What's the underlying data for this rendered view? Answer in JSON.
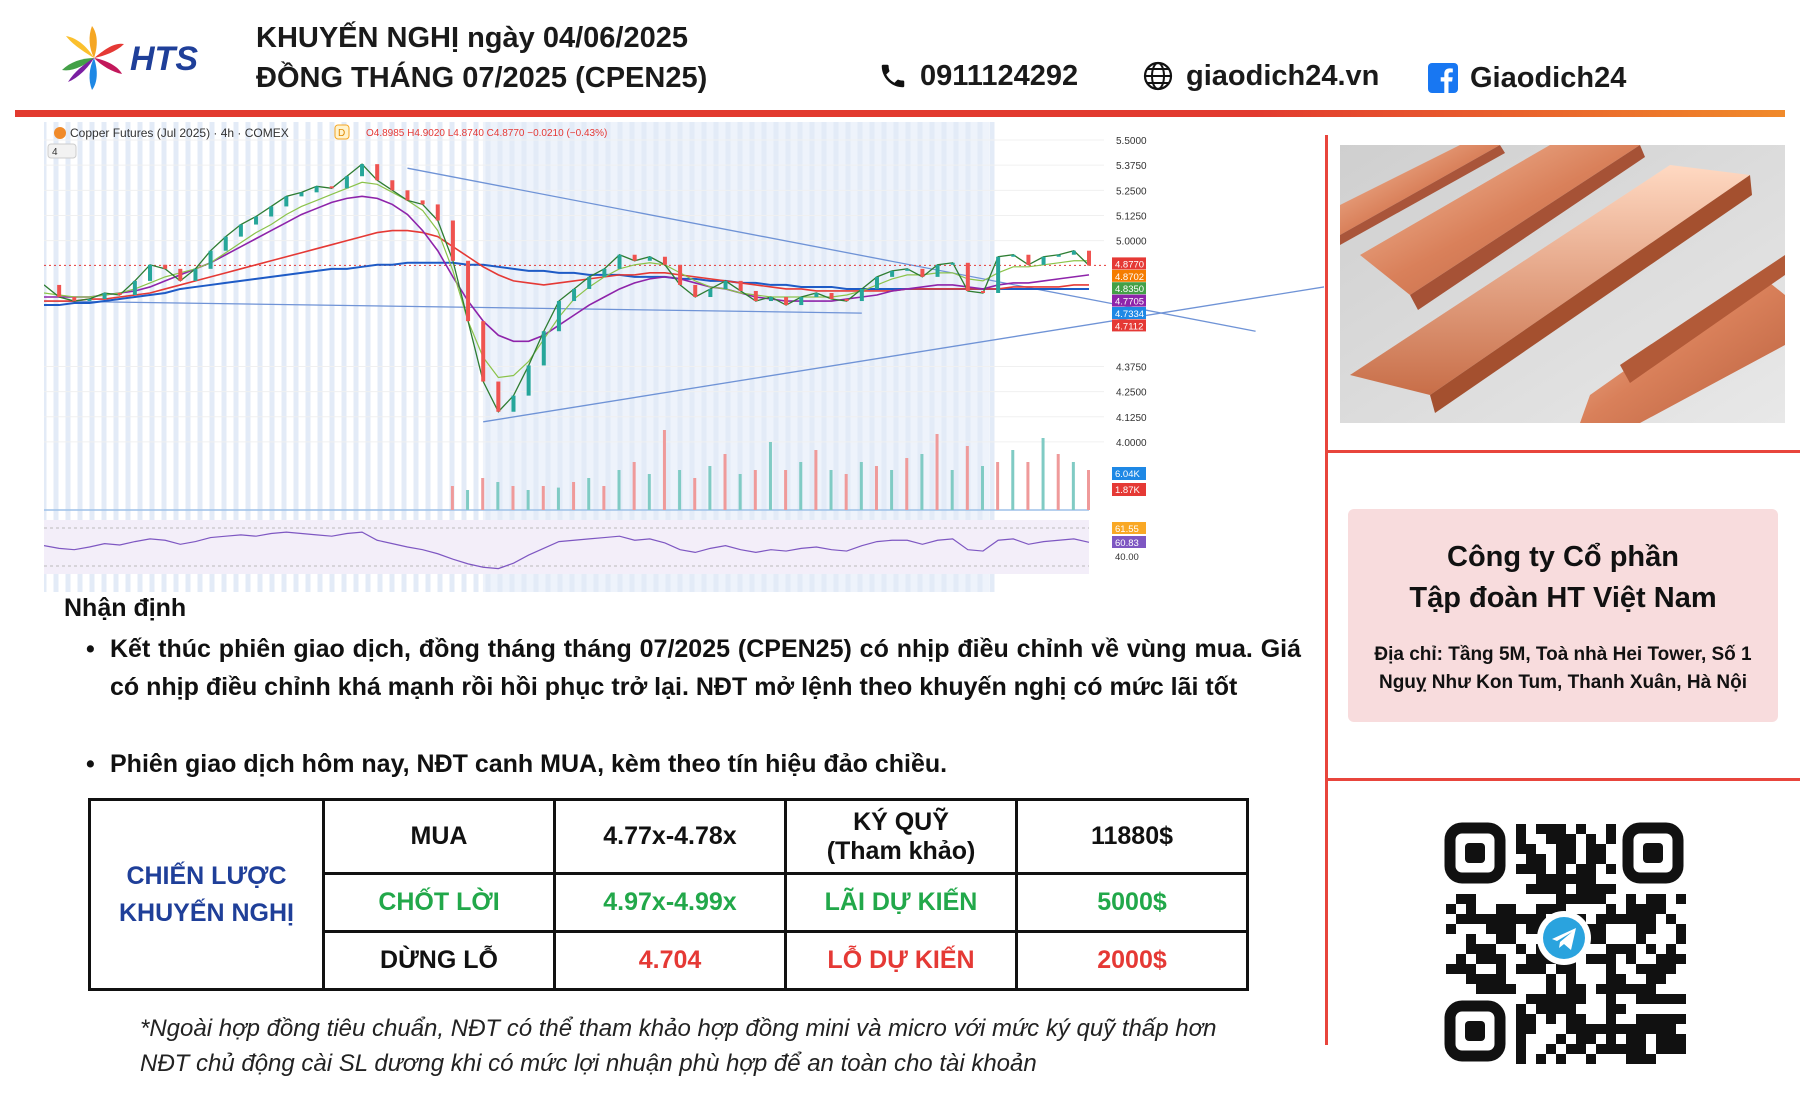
{
  "header": {
    "brand": "HTS",
    "title_line1": "KHUYẾN NGHỊ ngày 04/06/2025",
    "title_line2": "ĐỒNG THÁNG 07/2025 (CPEN25)",
    "phone": "0911124292",
    "website": "giaodich24.vn",
    "facebook": "Giaodich24"
  },
  "chart_toolbar": {
    "symbol": "Copper Futures (Jul 2025) · 4h · COMEX",
    "badge": "D",
    "ohlc": "O4.8985  H4.9020  L4.8740  C4.8770  −0.0210 (−0.43%)",
    "indicator_count": "4"
  },
  "chart_data": {
    "type": "line",
    "title": "Copper Futures (Jul 2025) · 4h · COMEX",
    "ylim": [
      3.95,
      5.5
    ],
    "y_ticks": [
      "5.5000",
      "5.3750",
      "5.2500",
      "5.1250",
      "5.0000",
      "4.3750",
      "4.2500",
      "4.1250",
      "4.0000"
    ],
    "series": [
      {
        "name": "price",
        "values": [
          4.78,
          4.72,
          4.7,
          4.71,
          4.74,
          4.73,
          4.8,
          4.88,
          4.86,
          4.8,
          4.86,
          4.95,
          5.02,
          5.08,
          5.12,
          5.17,
          5.22,
          5.24,
          5.27,
          5.26,
          5.32,
          5.38,
          5.3,
          5.25,
          5.2,
          5.18,
          5.1,
          4.9,
          4.6,
          4.3,
          4.15,
          4.23,
          4.38,
          4.55,
          4.7,
          4.76,
          4.82,
          4.86,
          4.93,
          4.9,
          4.92,
          4.88,
          4.78,
          4.72,
          4.76,
          4.8,
          4.75,
          4.7,
          4.72,
          4.68,
          4.72,
          4.74,
          4.71,
          4.7,
          4.76,
          4.82,
          4.85,
          4.86,
          4.82,
          4.88,
          4.89,
          4.75,
          4.74,
          4.92,
          4.93,
          4.88,
          4.92,
          4.93,
          4.95,
          4.877
        ]
      },
      {
        "name": "ma_fast",
        "values": [
          4.74,
          4.73,
          4.72,
          4.72,
          4.73,
          4.74,
          4.76,
          4.79,
          4.82,
          4.84,
          4.86,
          4.89,
          4.94,
          4.99,
          5.04,
          5.08,
          5.13,
          5.17,
          5.2,
          5.23,
          5.26,
          5.29,
          5.28,
          5.24,
          5.2,
          5.15,
          5.05,
          4.85,
          4.6,
          4.42,
          4.32,
          4.33,
          4.4,
          4.51,
          4.62,
          4.71,
          4.77,
          4.82,
          4.86,
          4.88,
          4.89,
          4.88,
          4.84,
          4.8,
          4.77,
          4.76,
          4.74,
          4.73,
          4.72,
          4.72,
          4.72,
          4.72,
          4.72,
          4.73,
          4.75,
          4.78,
          4.81,
          4.83,
          4.83,
          4.84,
          4.84,
          4.81,
          4.8,
          4.84,
          4.87,
          4.87,
          4.88,
          4.89,
          4.9,
          4.9
        ]
      },
      {
        "name": "ma_mid",
        "values": [
          4.72,
          4.72,
          4.72,
          4.72,
          4.73,
          4.74,
          4.75,
          4.77,
          4.8,
          4.83,
          4.86,
          4.89,
          4.93,
          4.97,
          5.01,
          5.05,
          5.09,
          5.13,
          5.16,
          5.19,
          5.21,
          5.22,
          5.21,
          5.18,
          5.13,
          5.05,
          4.95,
          4.82,
          4.7,
          4.6,
          4.53,
          4.5,
          4.5,
          4.53,
          4.58,
          4.63,
          4.68,
          4.72,
          4.76,
          4.79,
          4.81,
          4.82,
          4.81,
          4.79,
          4.77,
          4.76,
          4.74,
          4.72,
          4.71,
          4.7,
          4.7,
          4.7,
          4.7,
          4.71,
          4.72,
          4.73,
          4.75,
          4.76,
          4.77,
          4.78,
          4.78,
          4.77,
          4.76,
          4.78,
          4.79,
          4.79,
          4.8,
          4.81,
          4.82,
          4.83
        ]
      },
      {
        "name": "ma_slow",
        "values": [
          4.7,
          4.7,
          4.7,
          4.71,
          4.71,
          4.72,
          4.73,
          4.74,
          4.76,
          4.78,
          4.8,
          4.82,
          4.84,
          4.86,
          4.88,
          4.9,
          4.92,
          4.94,
          4.96,
          4.98,
          5.0,
          5.02,
          5.04,
          5.05,
          5.05,
          5.04,
          5.02,
          4.97,
          4.92,
          4.87,
          4.83,
          4.8,
          4.79,
          4.78,
          4.79,
          4.8,
          4.81,
          4.82,
          4.83,
          4.83,
          4.84,
          4.84,
          4.83,
          4.82,
          4.81,
          4.8,
          4.79,
          4.78,
          4.77,
          4.76,
          4.76,
          4.75,
          4.75,
          4.75,
          4.75,
          4.75,
          4.75,
          4.76,
          4.76,
          4.76,
          4.76,
          4.76,
          4.76,
          4.76,
          4.77,
          4.77,
          4.77,
          4.77,
          4.78,
          4.78
        ]
      },
      {
        "name": "ma_long",
        "values": [
          4.68,
          4.68,
          4.69,
          4.69,
          4.7,
          4.71,
          4.72,
          4.73,
          4.74,
          4.76,
          4.77,
          4.78,
          4.79,
          4.8,
          4.81,
          4.82,
          4.83,
          4.84,
          4.85,
          4.86,
          4.86,
          4.87,
          4.88,
          4.88,
          4.89,
          4.89,
          4.89,
          4.89,
          4.88,
          4.88,
          4.87,
          4.86,
          4.85,
          4.85,
          4.84,
          4.84,
          4.83,
          4.83,
          4.83,
          4.82,
          4.82,
          4.82,
          4.81,
          4.81,
          4.8,
          4.8,
          4.79,
          4.79,
          4.78,
          4.78,
          4.77,
          4.77,
          4.77,
          4.76,
          4.76,
          4.76,
          4.76,
          4.76,
          4.76,
          4.76,
          4.76,
          4.76,
          4.76,
          4.76,
          4.76,
          4.76,
          4.76,
          4.76,
          4.76,
          4.76
        ]
      }
    ],
    "volume": [
      0,
      0,
      0,
      0,
      0,
      0,
      0,
      0,
      0,
      0,
      0,
      0,
      0,
      0,
      0,
      0,
      0,
      0,
      0,
      0,
      0,
      0,
      0,
      0,
      0,
      0,
      0,
      0.3,
      0.25,
      0.4,
      0.35,
      0.3,
      0.25,
      0.3,
      0.28,
      0.35,
      0.4,
      0.3,
      0.5,
      0.6,
      0.45,
      1.0,
      0.5,
      0.4,
      0.55,
      0.7,
      0.45,
      0.5,
      0.85,
      0.5,
      0.6,
      0.75,
      0.5,
      0.45,
      0.6,
      0.55,
      0.5,
      0.65,
      0.7,
      0.95,
      0.5,
      0.8,
      0.55,
      0.6,
      0.75,
      0.6,
      0.9,
      0.7,
      0.6,
      0.5
    ],
    "rsi": [
      52,
      48,
      46,
      50,
      55,
      53,
      58,
      62,
      60,
      54,
      58,
      64,
      66,
      68,
      66,
      70,
      72,
      70,
      68,
      66,
      70,
      72,
      60,
      55,
      50,
      46,
      40,
      32,
      25,
      20,
      18,
      26,
      38,
      48,
      58,
      60,
      62,
      64,
      66,
      60,
      62,
      56,
      46,
      42,
      48,
      52,
      46,
      42,
      46,
      44,
      48,
      50,
      46,
      44,
      52,
      58,
      60,
      60,
      54,
      60,
      62,
      46,
      44,
      60,
      62,
      54,
      58,
      60,
      62,
      57
    ],
    "price_labels": [
      "4.8770",
      "4.8702",
      "4.8350",
      "4.7705",
      "4.7334",
      "4.7112"
    ],
    "price_label_colors": [
      "#e53935",
      "#f57c00",
      "#43a047",
      "#8e24aa",
      "#1e88e5",
      "#e53935"
    ],
    "volume_labels": [
      "6.04K",
      "1.87K"
    ],
    "volume_label_colors": [
      "#1e88e5",
      "#e53935"
    ],
    "rsi_labels": [
      "61.55",
      "60.83",
      "40.00"
    ],
    "rsi_label_colors": [
      "#f9a825",
      "#7e57c2",
      "#ffffff"
    ],
    "trendlines": [
      {
        "from": [
          24,
          5.36
        ],
        "to": [
          80,
          4.55
        ]
      },
      {
        "from": [
          29,
          4.1
        ],
        "to": [
          87,
          4.8
        ]
      },
      {
        "from": [
          0,
          4.7
        ],
        "to": [
          54,
          4.64
        ]
      }
    ],
    "last_price": 4.877
  },
  "analysis": {
    "heading": "Nhận định",
    "bullets": [
      "Kết thúc phiên giao dịch, đồng tháng tháng 07/2025 (CPEN25) có nhịp điều chỉnh về vùng mua. Giá có nhịp điều chỉnh khá mạnh rồi hồi phục trở lại. NĐT mở lệnh theo khuyến nghị có mức lãi tốt",
      "Phiên giao dịch hôm nay, NĐT canh MUA, kèm theo tín hiệu đảo chiều."
    ]
  },
  "strategy": {
    "label_line1": "CHIẾN LƯỢC",
    "label_line2": "KHUYẾN NGHỊ",
    "buy_label": "MUA",
    "buy_range": "4.77x-4.78x",
    "margin_line1": "KÝ QUỸ",
    "margin_line2": "(Tham khảo)",
    "margin_value": "11880$",
    "tp_label": "CHỐT LỜI",
    "tp_range": "4.97x-4.99x",
    "profit_label": "LÃI DỰ KIẾN",
    "profit_value": "5000$",
    "sl_label": "DỪNG LỖ",
    "sl_value": "4.704",
    "loss_label": "LỖ DỰ KIẾN",
    "loss_value": "2000$",
    "colors": {
      "navy": "#1f3f99",
      "green": "#22a84a",
      "red": "#e53935"
    }
  },
  "footnote": {
    "line1": "*Ngoài hợp đồng tiêu chuẩn, NĐT có thể tham khảo hợp đồng mini và micro với mức ký quỹ thấp hơn",
    "line2": "NĐT chủ động cài SL dương khi có mức lợi nhuận phù hợp để an toàn cho tài khoản"
  },
  "company": {
    "name_line1": "Công ty Cổ phần",
    "name_line2": "Tập đoàn HT Việt Nam",
    "address_line1": "Địa chỉ: Tầng 5M, Toà nhà Hei Tower, Số 1",
    "address_line2": "Nguỵ Như Kon Tum, Thanh Xuân, Hà Nội"
  },
  "icons": {
    "logo": "hts-flower-logo",
    "phone": "phone-icon",
    "web": "globe-icon",
    "facebook": "facebook-icon",
    "qr_center": "telegram-icon",
    "image": "copper-bars-photo"
  }
}
